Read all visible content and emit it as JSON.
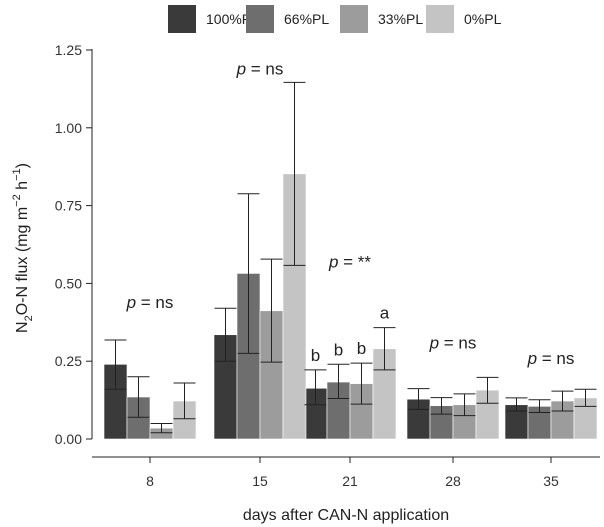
{
  "chart_data": {
    "type": "bar",
    "categories": [
      "8",
      "15",
      "21",
      "28",
      "35"
    ],
    "xlabel": "days after CAN-N application",
    "ylabel": {
      "parts": [
        {
          "text": "N",
          "style": "normal"
        },
        {
          "text": "2",
          "style": "sub"
        },
        {
          "text": "O-N flux (mg m",
          "style": "normal"
        },
        {
          "text": "−2",
          "style": "sup"
        },
        {
          "text": " h",
          "style": "normal"
        },
        {
          "text": "−1",
          "style": "sup"
        },
        {
          "text": ")",
          "style": "normal"
        }
      ]
    },
    "ylim": [
      0,
      1.25
    ],
    "yticks": [
      "0.00",
      "0.25",
      "0.50",
      "0.75",
      "1.00",
      "1.25"
    ],
    "grid": false,
    "legend_position": "top",
    "series": [
      {
        "name": "100%PL",
        "color": "#3a3a3a",
        "values": [
          0.24,
          0.335,
          0.163,
          0.128,
          0.11
        ],
        "err_low": [
          0.16,
          0.25,
          0.11,
          0.095,
          0.09
        ],
        "err_high": [
          0.318,
          0.42,
          0.222,
          0.162,
          0.132
        ]
      },
      {
        "name": "66%PL",
        "color": "#6e6e6e",
        "values": [
          0.135,
          0.532,
          0.183,
          0.107,
          0.105
        ],
        "err_low": [
          0.07,
          0.275,
          0.13,
          0.08,
          0.085
        ],
        "err_high": [
          0.2,
          0.788,
          0.24,
          0.133,
          0.126
        ]
      },
      {
        "name": "33%PL",
        "color": "#9c9c9c",
        "values": [
          0.035,
          0.412,
          0.178,
          0.11,
          0.122
        ],
        "err_low": [
          0.02,
          0.247,
          0.112,
          0.075,
          0.09
        ],
        "err_high": [
          0.05,
          0.578,
          0.244,
          0.145,
          0.154
        ]
      },
      {
        "name": "0%PL",
        "color": "#c4c4c4",
        "values": [
          0.122,
          0.852,
          0.29,
          0.157,
          0.132
        ],
        "err_low": [
          0.065,
          0.558,
          0.222,
          0.115,
          0.105
        ],
        "err_high": [
          0.18,
          1.146,
          0.358,
          0.198,
          0.16
        ]
      }
    ],
    "annotations": [
      {
        "group": 0,
        "prefix": "p",
        "suffix": " = ns",
        "y": 0.44
      },
      {
        "group": 1,
        "prefix": "p",
        "suffix": " = ns",
        "y": 1.19
      },
      {
        "group": 2,
        "prefix": "p",
        "suffix": " = **",
        "y": 0.57
      },
      {
        "group": 3,
        "prefix": "p",
        "suffix": " = ns",
        "y": 0.31
      },
      {
        "group": 4,
        "prefix": "p",
        "suffix": " = ns",
        "y": 0.26
      }
    ],
    "letters": {
      "group": 2,
      "labels": [
        "b",
        "b",
        "b",
        "a"
      ]
    }
  }
}
